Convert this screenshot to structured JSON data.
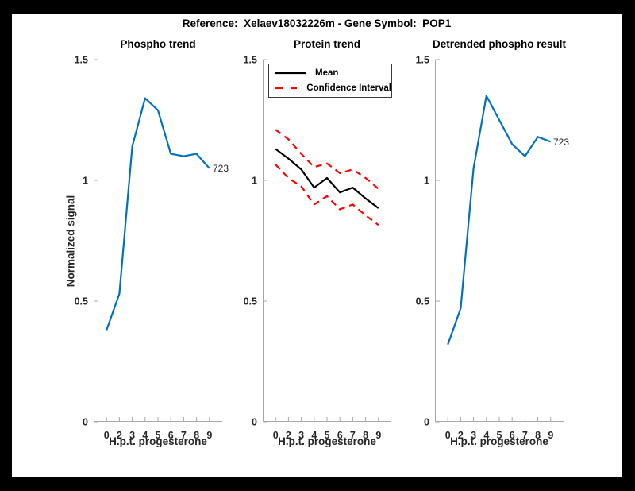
{
  "figure": {
    "title": "Reference:  Xelaev18032226m - Gene Symbol:  POP1"
  },
  "colors": {
    "blue": "#0072BD",
    "red": "#FF0000",
    "black": "#000000",
    "axis": "#A8A8A8",
    "tick_text": "#262626",
    "background": "#000000",
    "panel": "#FFFFFF"
  },
  "chart_data": [
    {
      "type": "line",
      "title": "Phospho trend",
      "xlabel": "H.p.t. progesterone",
      "ylabel": "Normalized signal",
      "x_tick_labels": [
        "0",
        "2",
        "3",
        "4",
        "5",
        "6",
        "7",
        "8",
        "9"
      ],
      "yticks": [
        0,
        0.5,
        1,
        1.5
      ],
      "ytick_labels": [
        "0",
        "0.5",
        "1",
        "1.5"
      ],
      "ylim": [
        0,
        1.5
      ],
      "grid": false,
      "series": [
        {
          "name": "phospho-signal",
          "color": "blue",
          "dash": null,
          "values": [
            0.38,
            0.53,
            1.14,
            1.34,
            1.29,
            1.11,
            1.1,
            1.11,
            1.05
          ]
        }
      ],
      "end_label": "723"
    },
    {
      "type": "line",
      "title": "Protein trend",
      "xlabel": "H.p.t. progesterone",
      "ylabel": "",
      "x_tick_labels": [
        "0",
        "2",
        "3",
        "4",
        "5",
        "6",
        "7",
        "8",
        "9"
      ],
      "yticks": [
        0,
        0.5,
        1,
        1.5
      ],
      "ytick_labels": [
        "0",
        "0.5",
        "1",
        "1.5"
      ],
      "ylim": [
        0,
        1.5
      ],
      "grid": false,
      "series": [
        {
          "name": "confidence-upper",
          "color": "red",
          "dash": "8 6",
          "values": [
            1.21,
            1.17,
            1.11,
            1.055,
            1.07,
            1.03,
            1.045,
            1.01,
            0.965
          ]
        },
        {
          "name": "confidence-lower",
          "color": "red",
          "dash": "8 6",
          "values": [
            1.065,
            1.01,
            0.975,
            0.9,
            0.935,
            0.88,
            0.9,
            0.855,
            0.815
          ]
        },
        {
          "name": "mean",
          "color": "black",
          "dash": null,
          "values": [
            1.13,
            1.09,
            1.045,
            0.97,
            1.01,
            0.95,
            0.97,
            0.925,
            0.885
          ]
        }
      ],
      "legend": {
        "position": "top-left",
        "entries": [
          {
            "label": "Mean"
          },
          {
            "label": "Confidence Interval"
          }
        ]
      }
    },
    {
      "type": "line",
      "title": "Detrended phospho result",
      "xlabel": "H.p.t. progesterone",
      "ylabel": "",
      "x_tick_labels": [
        "0",
        "2",
        "3",
        "4",
        "5",
        "6",
        "7",
        "8",
        "9"
      ],
      "yticks": [
        0,
        0.5,
        1,
        1.5
      ],
      "ytick_labels": [
        "0",
        "0.5",
        "1",
        "1.5"
      ],
      "ylim": [
        0,
        1.5
      ],
      "grid": false,
      "series": [
        {
          "name": "detrended-phospho",
          "color": "blue",
          "dash": null,
          "values": [
            0.32,
            0.47,
            1.05,
            1.35,
            1.25,
            1.15,
            1.1,
            1.18,
            1.16
          ]
        }
      ],
      "end_label": "723"
    }
  ]
}
